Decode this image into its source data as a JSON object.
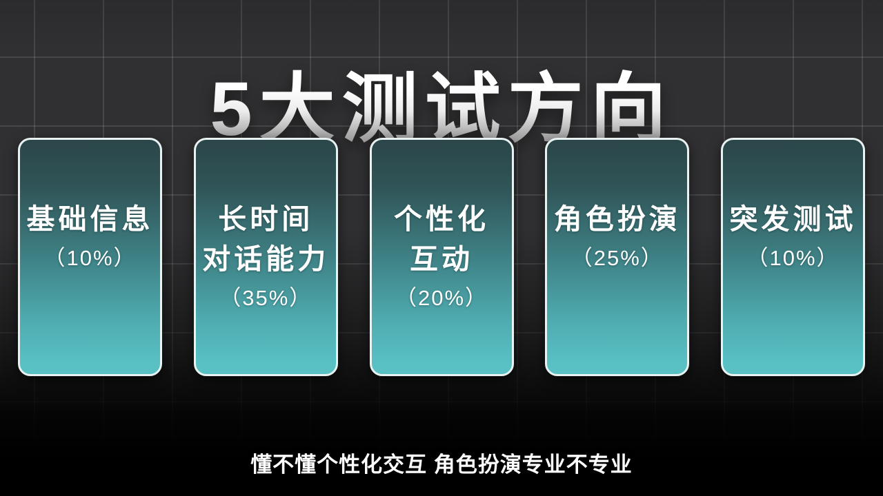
{
  "title": "5大测试方向",
  "cards": [
    {
      "label": "基础信息",
      "percent": "（10%）"
    },
    {
      "label": "长时间\n对话能力",
      "percent": "（35%）"
    },
    {
      "label": "个性化\n互动",
      "percent": "（20%）"
    },
    {
      "label": "角色扮演",
      "percent": "（25%）"
    },
    {
      "label": "突发测试",
      "percent": "（10%）"
    }
  ],
  "subtitle": "懂不懂个性化交互 角色扮演专业不专业",
  "colors": {
    "background": "#303032",
    "grid_line": "#4a4a4d",
    "card_gradient_top": "#2b4649",
    "card_gradient_bottom": "#59c1c4",
    "card_border": "#e9f2f2",
    "text": "#ffffff",
    "title_gradient_top": "#ffffff",
    "title_gradient_bottom": "#7c7c7c"
  }
}
